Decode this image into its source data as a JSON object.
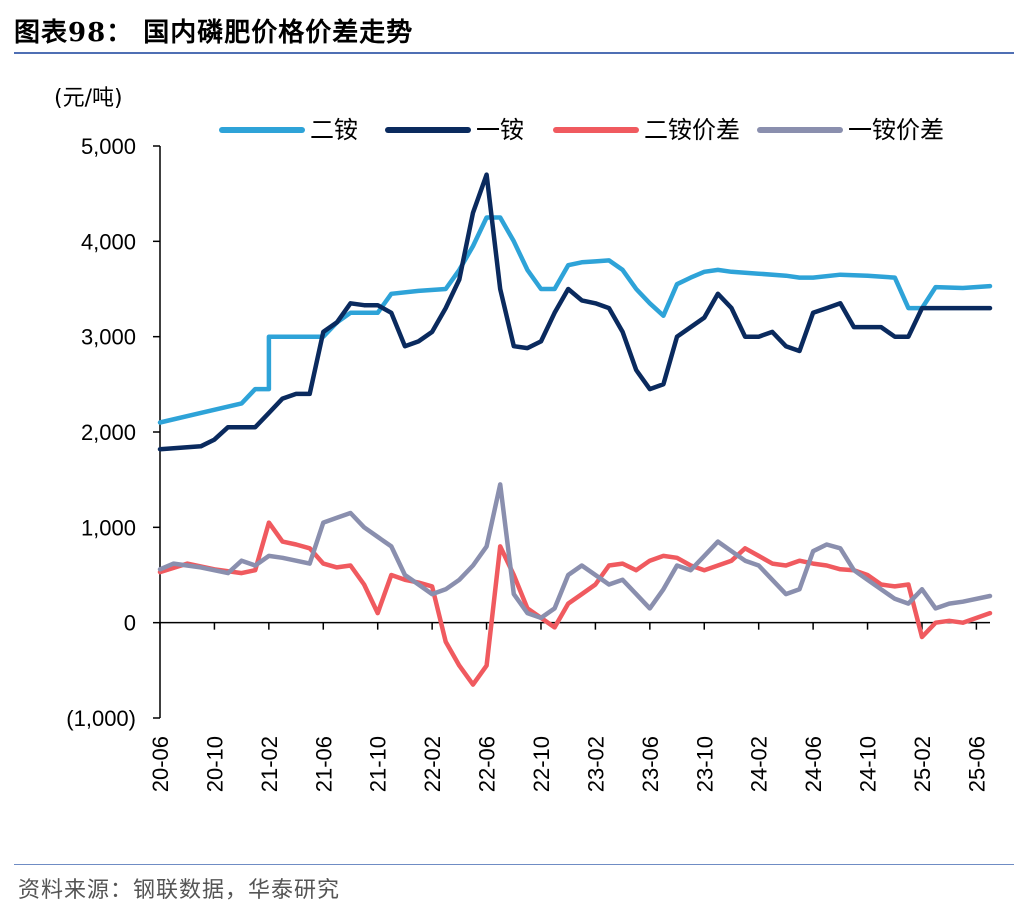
{
  "title": "图表98：  国内磷肥价格价差走势",
  "source": "资料来源：钢联数据，华泰研究",
  "chart_data": {
    "type": "line",
    "unit": "(元/吨)",
    "ylim": [
      -1000,
      5000
    ],
    "yticks": [
      -1000,
      0,
      1000,
      2000,
      3000,
      4000,
      5000
    ],
    "ytick_labels": [
      "(1,000)",
      "0",
      "1,000",
      "2,000",
      "3,000",
      "4,000",
      "5,000"
    ],
    "x_range": [
      "20-06",
      "25-07"
    ],
    "xtick_labels": [
      "20-06",
      "20-10",
      "21-02",
      "21-06",
      "21-10",
      "22-02",
      "22-06",
      "22-10",
      "23-02",
      "23-06",
      "23-10",
      "24-02",
      "24-06",
      "24-10",
      "25-02",
      "25-06"
    ],
    "legend_position": "top",
    "grid": false,
    "series": [
      {
        "name": "二铵",
        "color": "#2ea3d8",
        "points": [
          [
            "20-06",
            2100
          ],
          [
            "20-09",
            2200
          ],
          [
            "20-12",
            2300
          ],
          [
            "21-01",
            2450
          ],
          [
            "21-02",
            2450
          ],
          [
            "21-02",
            3000
          ],
          [
            "21-05",
            3000
          ],
          [
            "21-06",
            3000
          ],
          [
            "21-07",
            3150
          ],
          [
            "21-08",
            3250
          ],
          [
            "21-10",
            3250
          ],
          [
            "21-11",
            3450
          ],
          [
            "22-01",
            3480
          ],
          [
            "22-03",
            3500
          ],
          [
            "22-04",
            3700
          ],
          [
            "22-05",
            3950
          ],
          [
            "22-06",
            4250
          ],
          [
            "22-07",
            4250
          ],
          [
            "22-08",
            4000
          ],
          [
            "22-09",
            3700
          ],
          [
            "22-10",
            3500
          ],
          [
            "22-11",
            3500
          ],
          [
            "22-12",
            3750
          ],
          [
            "23-01",
            3780
          ],
          [
            "23-02",
            3790
          ],
          [
            "23-03",
            3800
          ],
          [
            "23-04",
            3700
          ],
          [
            "23-05",
            3500
          ],
          [
            "23-06",
            3350
          ],
          [
            "23-07",
            3220
          ],
          [
            "23-08",
            3550
          ],
          [
            "23-09",
            3620
          ],
          [
            "23-10",
            3680
          ],
          [
            "23-11",
            3700
          ],
          [
            "23-12",
            3680
          ],
          [
            "24-02",
            3660
          ],
          [
            "24-04",
            3640
          ],
          [
            "24-05",
            3620
          ],
          [
            "24-06",
            3620
          ],
          [
            "24-08",
            3650
          ],
          [
            "24-10",
            3640
          ],
          [
            "24-12",
            3620
          ],
          [
            "25-01",
            3300
          ],
          [
            "25-02",
            3300
          ],
          [
            "25-03",
            3520
          ],
          [
            "25-05",
            3510
          ],
          [
            "25-07",
            3530
          ]
        ]
      },
      {
        "name": "一铵",
        "color": "#0a2a5e",
        "points": [
          [
            "20-06",
            1820
          ],
          [
            "20-09",
            1850
          ],
          [
            "20-10",
            1920
          ],
          [
            "20-11",
            2050
          ],
          [
            "21-01",
            2050
          ],
          [
            "21-02",
            2200
          ],
          [
            "21-03",
            2350
          ],
          [
            "21-04",
            2400
          ],
          [
            "21-05",
            2400
          ],
          [
            "21-06",
            3050
          ],
          [
            "21-07",
            3150
          ],
          [
            "21-08",
            3350
          ],
          [
            "21-09",
            3330
          ],
          [
            "21-10",
            3330
          ],
          [
            "21-11",
            3250
          ],
          [
            "21-12",
            2900
          ],
          [
            "22-01",
            2950
          ],
          [
            "22-02",
            3050
          ],
          [
            "22-03",
            3300
          ],
          [
            "22-04",
            3600
          ],
          [
            "22-05",
            4300
          ],
          [
            "22-06",
            4700
          ],
          [
            "22-07",
            3500
          ],
          [
            "22-08",
            2900
          ],
          [
            "22-09",
            2880
          ],
          [
            "22-10",
            2950
          ],
          [
            "22-11",
            3250
          ],
          [
            "22-12",
            3500
          ],
          [
            "23-01",
            3380
          ],
          [
            "23-02",
            3350
          ],
          [
            "23-03",
            3300
          ],
          [
            "23-04",
            3050
          ],
          [
            "23-05",
            2650
          ],
          [
            "23-06",
            2450
          ],
          [
            "23-07",
            2500
          ],
          [
            "23-08",
            3000
          ],
          [
            "23-09",
            3100
          ],
          [
            "23-10",
            3200
          ],
          [
            "23-11",
            3450
          ],
          [
            "23-12",
            3300
          ],
          [
            "24-01",
            3000
          ],
          [
            "24-02",
            3000
          ],
          [
            "24-03",
            3050
          ],
          [
            "24-04",
            2900
          ],
          [
            "24-05",
            2850
          ],
          [
            "24-06",
            3250
          ],
          [
            "24-07",
            3300
          ],
          [
            "24-08",
            3350
          ],
          [
            "24-09",
            3100
          ],
          [
            "24-10",
            3100
          ],
          [
            "24-11",
            3100
          ],
          [
            "24-12",
            3000
          ],
          [
            "25-01",
            3000
          ],
          [
            "25-02",
            3300
          ],
          [
            "25-03",
            3300
          ],
          [
            "25-05",
            3300
          ],
          [
            "25-07",
            3300
          ]
        ]
      },
      {
        "name": "二铵价差",
        "color": "#f05a5f",
        "points": [
          [
            "20-06",
            530
          ],
          [
            "20-08",
            620
          ],
          [
            "20-10",
            560
          ],
          [
            "20-12",
            520
          ],
          [
            "21-01",
            550
          ],
          [
            "21-02",
            1050
          ],
          [
            "21-03",
            850
          ],
          [
            "21-04",
            820
          ],
          [
            "21-05",
            780
          ],
          [
            "21-06",
            620
          ],
          [
            "21-07",
            580
          ],
          [
            "21-08",
            600
          ],
          [
            "21-09",
            400
          ],
          [
            "21-10",
            100
          ],
          [
            "21-11",
            500
          ],
          [
            "21-12",
            450
          ],
          [
            "22-01",
            420
          ],
          [
            "22-02",
            380
          ],
          [
            "22-03",
            -200
          ],
          [
            "22-04",
            -450
          ],
          [
            "22-05",
            -650
          ],
          [
            "22-06",
            -450
          ],
          [
            "22-07",
            800
          ],
          [
            "22-08",
            500
          ],
          [
            "22-09",
            150
          ],
          [
            "22-10",
            50
          ],
          [
            "22-11",
            -50
          ],
          [
            "22-12",
            200
          ],
          [
            "23-01",
            300
          ],
          [
            "23-02",
            400
          ],
          [
            "23-03",
            600
          ],
          [
            "23-04",
            620
          ],
          [
            "23-05",
            550
          ],
          [
            "23-06",
            650
          ],
          [
            "23-07",
            700
          ],
          [
            "23-08",
            680
          ],
          [
            "23-09",
            600
          ],
          [
            "23-10",
            550
          ],
          [
            "23-11",
            600
          ],
          [
            "23-12",
            650
          ],
          [
            "24-01",
            780
          ],
          [
            "24-02",
            700
          ],
          [
            "24-03",
            620
          ],
          [
            "24-04",
            600
          ],
          [
            "24-05",
            650
          ],
          [
            "24-06",
            620
          ],
          [
            "24-07",
            600
          ],
          [
            "24-08",
            560
          ],
          [
            "24-09",
            550
          ],
          [
            "24-10",
            500
          ],
          [
            "24-11",
            400
          ],
          [
            "24-12",
            380
          ],
          [
            "25-01",
            400
          ],
          [
            "25-02",
            -150
          ],
          [
            "25-03",
            0
          ],
          [
            "25-04",
            20
          ],
          [
            "25-05",
            0
          ],
          [
            "25-07",
            100
          ]
        ]
      },
      {
        "name": "一铵价差",
        "color": "#8a8fae",
        "points": [
          [
            "20-06",
            560
          ],
          [
            "20-07",
            620
          ],
          [
            "20-09",
            580
          ],
          [
            "20-11",
            520
          ],
          [
            "20-12",
            650
          ],
          [
            "21-01",
            600
          ],
          [
            "21-02",
            700
          ],
          [
            "21-03",
            680
          ],
          [
            "21-04",
            650
          ],
          [
            "21-05",
            620
          ],
          [
            "21-06",
            1050
          ],
          [
            "21-07",
            1100
          ],
          [
            "21-08",
            1150
          ],
          [
            "21-09",
            1000
          ],
          [
            "21-10",
            900
          ],
          [
            "21-11",
            800
          ],
          [
            "21-12",
            500
          ],
          [
            "22-01",
            400
          ],
          [
            "22-02",
            300
          ],
          [
            "22-03",
            350
          ],
          [
            "22-04",
            450
          ],
          [
            "22-05",
            600
          ],
          [
            "22-06",
            800
          ],
          [
            "22-07",
            1450
          ],
          [
            "22-08",
            300
          ],
          [
            "22-09",
            100
          ],
          [
            "22-10",
            50
          ],
          [
            "22-11",
            150
          ],
          [
            "22-12",
            500
          ],
          [
            "23-01",
            600
          ],
          [
            "23-02",
            500
          ],
          [
            "23-03",
            400
          ],
          [
            "23-04",
            450
          ],
          [
            "23-05",
            300
          ],
          [
            "23-06",
            150
          ],
          [
            "23-07",
            350
          ],
          [
            "23-08",
            600
          ],
          [
            "23-09",
            550
          ],
          [
            "23-10",
            700
          ],
          [
            "23-11",
            850
          ],
          [
            "23-12",
            750
          ],
          [
            "24-01",
            650
          ],
          [
            "24-02",
            600
          ],
          [
            "24-03",
            450
          ],
          [
            "24-04",
            300
          ],
          [
            "24-05",
            350
          ],
          [
            "24-06",
            750
          ],
          [
            "24-07",
            820
          ],
          [
            "24-08",
            780
          ],
          [
            "24-09",
            550
          ],
          [
            "24-10",
            450
          ],
          [
            "24-11",
            350
          ],
          [
            "24-12",
            250
          ],
          [
            "25-01",
            200
          ],
          [
            "25-02",
            350
          ],
          [
            "25-03",
            150
          ],
          [
            "25-04",
            200
          ],
          [
            "25-05",
            220
          ],
          [
            "25-07",
            280
          ]
        ]
      }
    ]
  }
}
